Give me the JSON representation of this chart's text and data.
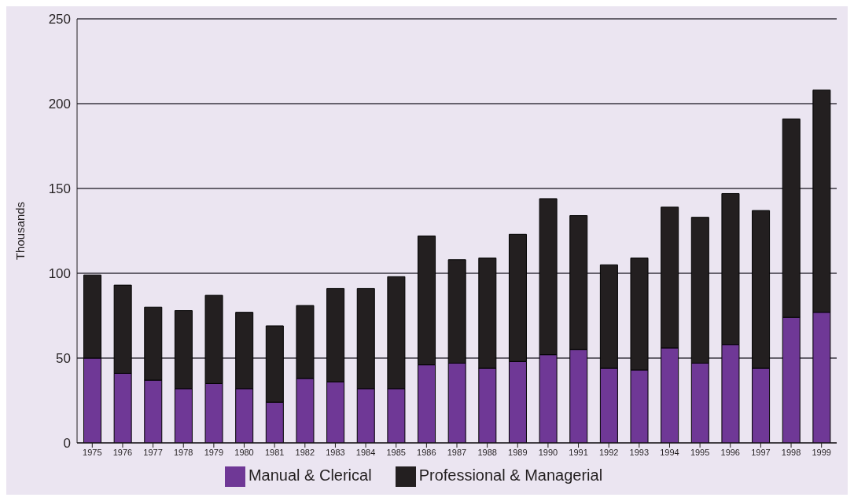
{
  "chart_data": {
    "type": "bar",
    "stacked": true,
    "ylabel": "Thousands",
    "categories": [
      "1975",
      "1976",
      "1977",
      "1978",
      "1979",
      "1980",
      "1981",
      "1982",
      "1983",
      "1984",
      "1985",
      "1986",
      "1987",
      "1988",
      "1989",
      "1990",
      "1991",
      "1992",
      "1993",
      "1994",
      "1995",
      "1996",
      "1997",
      "1998",
      "1999"
    ],
    "series": [
      {
        "name": "Manual & Clerical",
        "color": "#6f3896",
        "values": [
          50,
          41,
          37,
          32,
          35,
          32,
          24,
          38,
          36,
          32,
          32,
          46,
          47,
          44,
          48,
          52,
          55,
          44,
          43,
          56,
          47,
          58,
          44,
          74,
          77
        ]
      },
      {
        "name": "Professional & Managerial",
        "color": "#231f20",
        "values": [
          49,
          52,
          43,
          46,
          52,
          45,
          45,
          43,
          55,
          59,
          66,
          76,
          61,
          65,
          75,
          92,
          79,
          61,
          66,
          83,
          86,
          89,
          93,
          117,
          131
        ]
      }
    ],
    "ylim": [
      0,
      250
    ],
    "yticks": [
      0,
      50,
      100,
      150,
      200,
      250
    ],
    "grid": "y",
    "legend": "bottom"
  }
}
